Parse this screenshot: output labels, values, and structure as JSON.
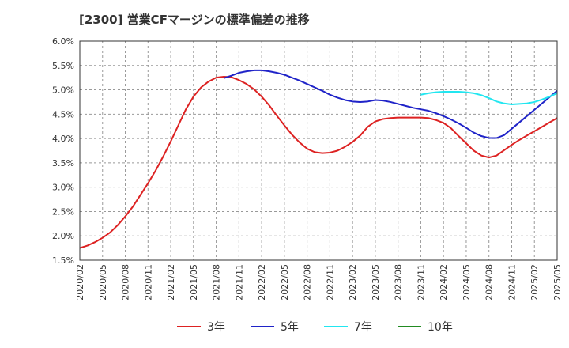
{
  "chart_data": {
    "type": "line",
    "title": "[2300]  営業CFマージンの標準偏差の推移",
    "xlabel": "",
    "ylabel": "",
    "ylim": [
      1.5,
      6.0
    ],
    "y_ticks": [
      "1.5%",
      "2.0%",
      "2.5%",
      "3.0%",
      "3.5%",
      "4.0%",
      "4.5%",
      "5.0%",
      "5.5%",
      "6.0%"
    ],
    "x_tick_labels": [
      "2020/02",
      "2020/05",
      "2020/08",
      "2020/11",
      "2021/02",
      "2021/05",
      "2021/08",
      "2021/11",
      "2022/02",
      "2022/05",
      "2022/08",
      "2022/11",
      "2023/02",
      "2023/05",
      "2023/08",
      "2023/11",
      "2024/02",
      "2024/05",
      "2024/08",
      "2024/11",
      "2025/02",
      "2025/05"
    ],
    "grid": true,
    "legend_position": "bottom",
    "series": [
      {
        "name": "3年",
        "color": "#dd2222",
        "points": [
          [
            "2020/02",
            1.75
          ],
          [
            "2020/03",
            1.8
          ],
          [
            "2020/04",
            1.87
          ],
          [
            "2020/05",
            1.96
          ],
          [
            "2020/06",
            2.07
          ],
          [
            "2020/07",
            2.22
          ],
          [
            "2020/08",
            2.4
          ],
          [
            "2020/09",
            2.6
          ],
          [
            "2020/10",
            2.84
          ],
          [
            "2020/11",
            3.08
          ],
          [
            "2020/12",
            3.34
          ],
          [
            "2021/01",
            3.63
          ],
          [
            "2021/02",
            3.94
          ],
          [
            "2021/03",
            4.27
          ],
          [
            "2021/04",
            4.6
          ],
          [
            "2021/05",
            4.86
          ],
          [
            "2021/06",
            5.05
          ],
          [
            "2021/07",
            5.17
          ],
          [
            "2021/08",
            5.25
          ],
          [
            "2021/09",
            5.27
          ],
          [
            "2021/10",
            5.26
          ],
          [
            "2021/11",
            5.2
          ],
          [
            "2021/12",
            5.12
          ],
          [
            "2022/01",
            5.01
          ],
          [
            "2022/02",
            4.86
          ],
          [
            "2022/03",
            4.68
          ],
          [
            "2022/04",
            4.47
          ],
          [
            "2022/05",
            4.27
          ],
          [
            "2022/06",
            4.08
          ],
          [
            "2022/07",
            3.92
          ],
          [
            "2022/08",
            3.79
          ],
          [
            "2022/09",
            3.72
          ],
          [
            "2022/10",
            3.7
          ],
          [
            "2022/11",
            3.71
          ],
          [
            "2022/12",
            3.75
          ],
          [
            "2023/01",
            3.83
          ],
          [
            "2023/02",
            3.93
          ],
          [
            "2023/03",
            4.06
          ],
          [
            "2023/04",
            4.24
          ],
          [
            "2023/05",
            4.35
          ],
          [
            "2023/06",
            4.4
          ],
          [
            "2023/07",
            4.42
          ],
          [
            "2023/08",
            4.43
          ],
          [
            "2023/09",
            4.43
          ],
          [
            "2023/10",
            4.43
          ],
          [
            "2023/11",
            4.43
          ],
          [
            "2023/12",
            4.42
          ],
          [
            "2024/01",
            4.38
          ],
          [
            "2024/02",
            4.32
          ],
          [
            "2024/03",
            4.21
          ],
          [
            "2024/04",
            4.05
          ],
          [
            "2024/05",
            3.9
          ],
          [
            "2024/06",
            3.75
          ],
          [
            "2024/07",
            3.65
          ],
          [
            "2024/08",
            3.61
          ],
          [
            "2024/09",
            3.65
          ],
          [
            "2024/10",
            3.76
          ],
          [
            "2024/11",
            3.87
          ],
          [
            "2024/12",
            3.97
          ],
          [
            "2025/01",
            4.06
          ],
          [
            "2025/02",
            4.15
          ],
          [
            "2025/03",
            4.24
          ],
          [
            "2025/04",
            4.33
          ],
          [
            "2025/05",
            4.42
          ]
        ]
      },
      {
        "name": "5年",
        "color": "#1f23c8",
        "points": [
          [
            "2021/09",
            5.24
          ],
          [
            "2021/10",
            5.29
          ],
          [
            "2021/11",
            5.35
          ],
          [
            "2021/12",
            5.38
          ],
          [
            "2022/01",
            5.4
          ],
          [
            "2022/02",
            5.4
          ],
          [
            "2022/03",
            5.38
          ],
          [
            "2022/04",
            5.35
          ],
          [
            "2022/05",
            5.31
          ],
          [
            "2022/06",
            5.25
          ],
          [
            "2022/07",
            5.19
          ],
          [
            "2022/08",
            5.12
          ],
          [
            "2022/09",
            5.05
          ],
          [
            "2022/10",
            4.98
          ],
          [
            "2022/11",
            4.9
          ],
          [
            "2022/12",
            4.84
          ],
          [
            "2023/01",
            4.79
          ],
          [
            "2023/02",
            4.76
          ],
          [
            "2023/03",
            4.75
          ],
          [
            "2023/04",
            4.76
          ],
          [
            "2023/05",
            4.79
          ],
          [
            "2023/06",
            4.78
          ],
          [
            "2023/07",
            4.75
          ],
          [
            "2023/08",
            4.71
          ],
          [
            "2023/09",
            4.67
          ],
          [
            "2023/10",
            4.63
          ],
          [
            "2023/11",
            4.6
          ],
          [
            "2023/12",
            4.57
          ],
          [
            "2024/01",
            4.52
          ],
          [
            "2024/02",
            4.46
          ],
          [
            "2024/03",
            4.39
          ],
          [
            "2024/04",
            4.31
          ],
          [
            "2024/05",
            4.22
          ],
          [
            "2024/06",
            4.12
          ],
          [
            "2024/07",
            4.05
          ],
          [
            "2024/08",
            4.01
          ],
          [
            "2024/09",
            4.01
          ],
          [
            "2024/10",
            4.07
          ],
          [
            "2024/11",
            4.2
          ],
          [
            "2024/12",
            4.33
          ],
          [
            "2025/01",
            4.46
          ],
          [
            "2025/02",
            4.59
          ],
          [
            "2025/03",
            4.72
          ],
          [
            "2025/04",
            4.85
          ],
          [
            "2025/05",
            4.98
          ]
        ]
      },
      {
        "name": "7年",
        "color": "#22e6f0",
        "points": [
          [
            "2023/11",
            4.9
          ],
          [
            "2023/12",
            4.93
          ],
          [
            "2024/01",
            4.95
          ],
          [
            "2024/02",
            4.96
          ],
          [
            "2024/03",
            4.96
          ],
          [
            "2024/04",
            4.96
          ],
          [
            "2024/05",
            4.95
          ],
          [
            "2024/06",
            4.93
          ],
          [
            "2024/07",
            4.89
          ],
          [
            "2024/08",
            4.83
          ],
          [
            "2024/09",
            4.76
          ],
          [
            "2024/10",
            4.72
          ],
          [
            "2024/11",
            4.7
          ],
          [
            "2024/12",
            4.71
          ],
          [
            "2025/01",
            4.72
          ],
          [
            "2025/02",
            4.75
          ],
          [
            "2025/03",
            4.8
          ],
          [
            "2025/04",
            4.86
          ],
          [
            "2025/05",
            4.93
          ]
        ]
      },
      {
        "name": "10年",
        "color": "#228b22",
        "points": []
      }
    ]
  }
}
